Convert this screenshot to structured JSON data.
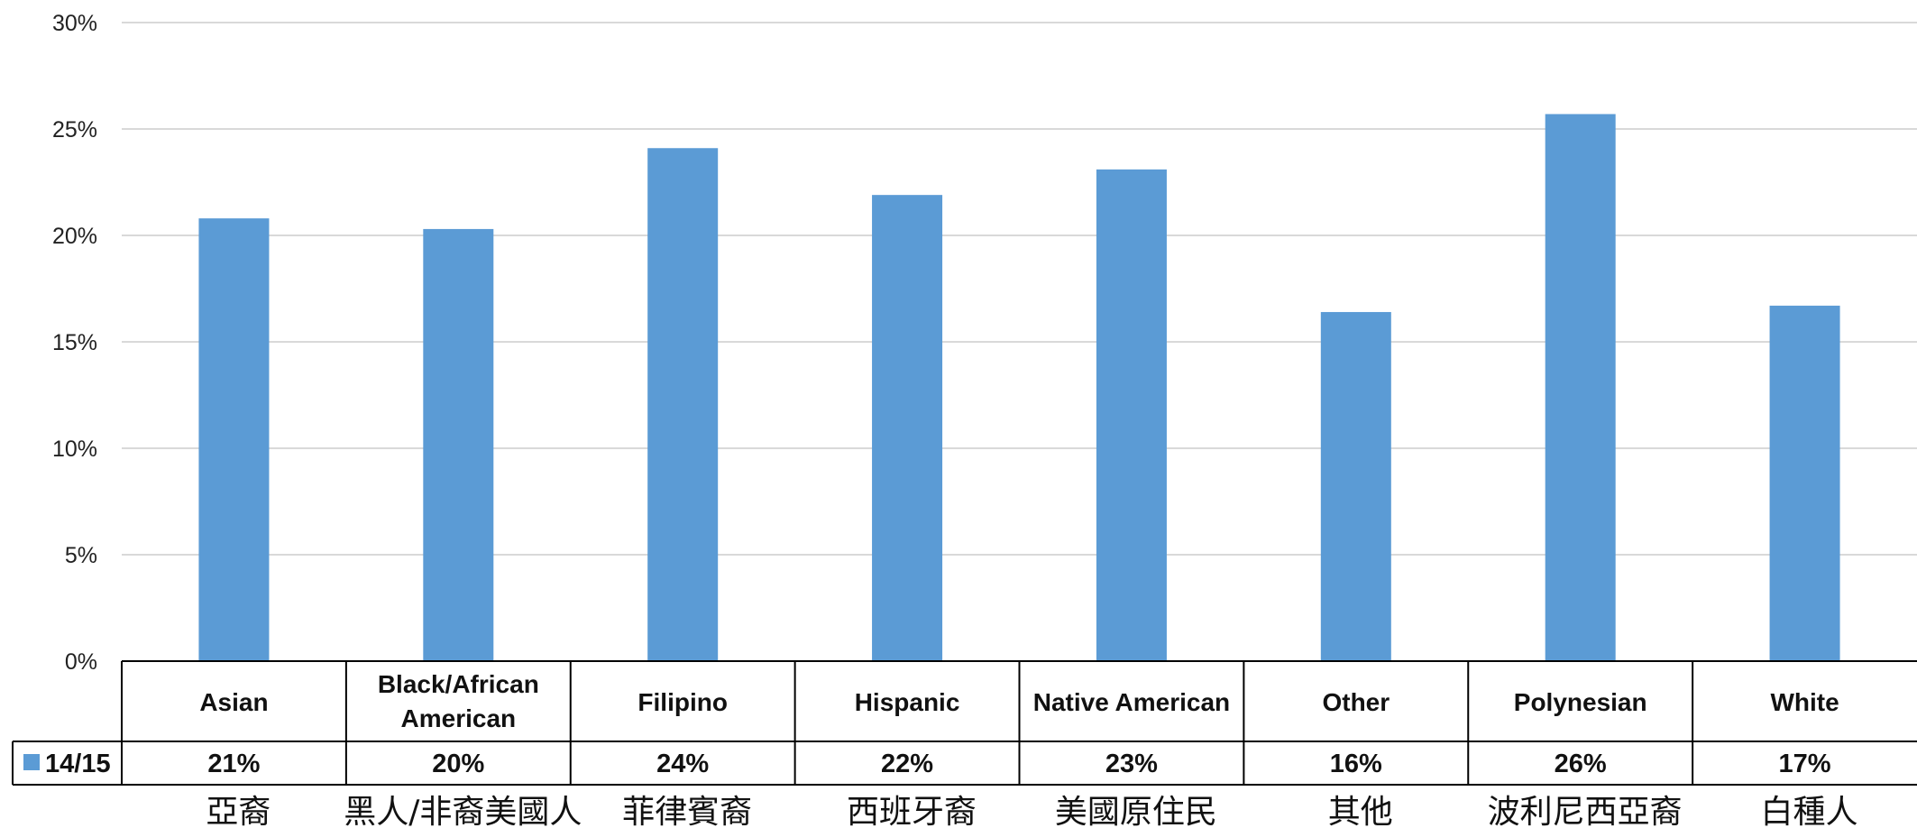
{
  "chart_data": {
    "type": "bar",
    "categories": [
      "Asian",
      "Black/African American",
      "Filipino",
      "Hispanic",
      "Native American",
      "Other",
      "Polynesian",
      "White"
    ],
    "category_lines": [
      [
        "Asian"
      ],
      [
        "Black/African",
        "American"
      ],
      [
        "Filipino"
      ],
      [
        "Hispanic"
      ],
      [
        "Native American"
      ],
      [
        "Other"
      ],
      [
        "Polynesian"
      ],
      [
        "White"
      ]
    ],
    "categories_zh": [
      "亞裔",
      "黑人/非裔美國人",
      "菲律賓裔",
      "西班牙裔",
      "美國原住民",
      "其他",
      "波利尼西亞裔",
      "白種人"
    ],
    "series": [
      {
        "name": "14/15",
        "values": [
          20.8,
          20.3,
          24.1,
          21.9,
          23.1,
          16.4,
          25.7,
          16.7
        ],
        "labels": [
          "21%",
          "20%",
          "24%",
          "22%",
          "23%",
          "16%",
          "26%",
          "17%"
        ],
        "color": "#5b9bd5"
      }
    ],
    "ylim": [
      0,
      30
    ],
    "yticks": [
      0,
      5,
      10,
      15,
      20,
      25,
      30
    ],
    "ytick_labels": [
      "0%",
      "5%",
      "10%",
      "15%",
      "20%",
      "25%",
      "30%"
    ],
    "grid": true,
    "legend": "data-table",
    "title": "",
    "xlabel": "",
    "ylabel": ""
  }
}
